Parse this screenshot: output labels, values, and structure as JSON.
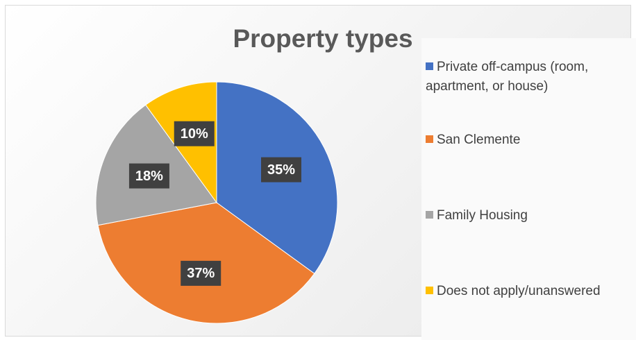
{
  "chart_data": {
    "type": "pie",
    "title": "Property types",
    "categories": [
      "Private off-campus (room, apartment, or house)",
      "San Clemente",
      "Family Housing",
      "Does not apply/unanswered"
    ],
    "values": [
      35,
      37,
      18,
      10
    ],
    "value_labels": [
      "35%",
      "37%",
      "18%",
      "10%"
    ],
    "colors": [
      "#4472c4",
      "#ed7d31",
      "#a5a5a5",
      "#ffc000"
    ],
    "legend": "right"
  }
}
